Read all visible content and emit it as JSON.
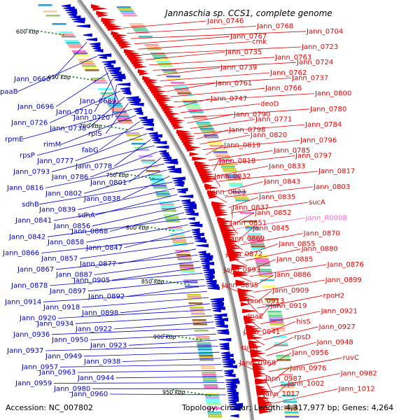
{
  "title": "Jannaschia sp. CCS1, complete genome",
  "accession": "Accession: NC_007802",
  "topology": "Topology: circular; Length: 4,317,977 bp; Genes: 4,264",
  "colors": {
    "forward": "#e60000",
    "reverse": "#0000cc",
    "rna": "#ff66cc",
    "backbone": "#909090",
    "tick": "#008000"
  },
  "kbp_ticks": [
    {
      "label": "600 kbp"
    },
    {
      "label": "650 kbp"
    },
    {
      "label": "700 kbp"
    },
    {
      "label": "750 kbp"
    },
    {
      "label": "800 kbp"
    },
    {
      "label": "850 kbp"
    },
    {
      "label": "900 kbp"
    },
    {
      "label": "950 kbp"
    }
  ],
  "left_labels": [
    "paaB",
    "Jann_0660",
    "Jann_0689",
    "Jann_0696",
    "Jann_0710",
    "Jann_0720",
    "Jann_0726",
    "Jann_0738",
    "rplS",
    "rpmE",
    "rimM",
    "fabG",
    "rpsP",
    "Jann_0777",
    "Jann_0778",
    "Jann_0793",
    "Jann_0786",
    "Jann_0801",
    "Jann_0816",
    "Jann_0802",
    "Jann_0838",
    "sdhB",
    "Jann_0839",
    "sdhA",
    "Jann_0841",
    "Jann_0856",
    "Jann_0868",
    "Jann_0842",
    "Jann_0858",
    "Jann_0847",
    "Jann_0866",
    "Jann_0857",
    "Jann_0877",
    "Jann_0867",
    "Jann_0887",
    "Jann_0905",
    "Jann_0878",
    "Jann_0897",
    "Jann_0892",
    "Jann_0914",
    "Jann_0918",
    "Jann_0898",
    "Jann_0920",
    "Jann_0934",
    "Jann_0922",
    "Jann_0936",
    "Jann_0950",
    "Jann_0923",
    "Jann_0937",
    "Jann_0949",
    "Jann_0938",
    "Jann_0957",
    "Jann_0963",
    "Jann_0944",
    "Jann_0959",
    "Jann_0980",
    "Jann_0960"
  ],
  "right_labels": [
    "Jann_0746",
    "Jann_0768",
    "Jann_0704",
    "Jann_0767",
    "cmk",
    "Jann_0723",
    "Jann_0735",
    "Jann_0763",
    "Jann_0724",
    "Jann_0739",
    "Jann_0762",
    "Jann_0737",
    "Jann_0761",
    "Jann_0766",
    "Jann_0800",
    "Jann_0747",
    "deoD",
    "Jann_0780",
    "Jann_0790",
    "Jann_0771",
    "Jann_0784",
    "Jann_0798",
    "Jann_0820",
    "Jann_0796",
    "Jann_0819",
    "Jann_0785",
    "Jann_0797",
    "Jann_0818",
    "Jann_0833",
    "Jann_0817",
    "Jann_0832",
    "Jann_0843",
    "Jann_0803",
    "Jann_0823",
    "Jann_0835",
    "sucA",
    "Jann_0837",
    "Jann_0852",
    "Jann_R0008",
    "Jann_0851",
    "Jann_0845",
    "Jann_0870",
    "Jann_0869",
    "Jann_0855",
    "Jann_0880",
    "Jann_0872",
    "Jann_0885",
    "Jann_0876",
    "Jann_0893",
    "Jann_0886",
    "Jann_0899",
    "Jann_0895",
    "Jann_0909",
    "rpoH2",
    "Jann_0913",
    "Jann_0919",
    "Jann_0921",
    "dnaE",
    "hisS",
    "Jann_0927",
    "Jann_0941",
    "rpsD",
    "Jann_0948",
    "ruvA",
    "Jann_0956",
    "ruvC",
    "Jann_0968",
    "Jann_0976",
    "Jann_0982",
    "Jann_0987",
    "Jann_1002",
    "Jann_1012",
    "Jann_1017"
  ]
}
